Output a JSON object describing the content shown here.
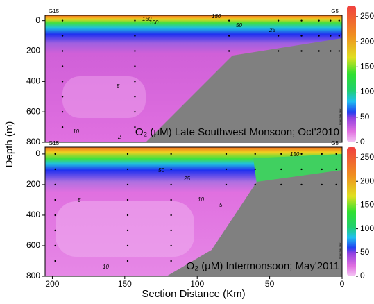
{
  "chart_data": [
    {
      "type": "contour",
      "title": "O₂ (µM) Late Southwest Monsoon; Oct'2010",
      "y_label": "Depth (m)",
      "ylim": [
        800,
        -35
      ],
      "yticks": [
        0,
        200,
        400,
        600,
        800
      ],
      "xlim": [
        205,
        0
      ],
      "station_labels": [
        "G15",
        "G5"
      ],
      "contour_labels": [
        150,
        100,
        150,
        50,
        25,
        5,
        10,
        2
      ],
      "watermark": "Ocean Data View",
      "colorbar_lim": [
        0,
        272
      ],
      "colorbar_ticks": [
        0,
        50,
        100,
        150,
        200,
        250
      ]
    },
    {
      "type": "contour",
      "title": "O₂ (µM) Intermonsoon; May'2011",
      "x_label": "Section Distance (Km)",
      "ylim": [
        800,
        -45
      ],
      "yticks": [
        0,
        200,
        400,
        600,
        800
      ],
      "xlim": [
        205,
        0
      ],
      "xticks": [
        200,
        150,
        100,
        50,
        0
      ],
      "station_labels": [
        "G15",
        "G5"
      ],
      "contour_labels": [
        50,
        25,
        150,
        5,
        10,
        5,
        10
      ],
      "watermark": "Ocean Data View",
      "colorbar_lim": [
        0,
        272
      ],
      "colorbar_ticks": [
        0,
        50,
        100,
        150,
        200,
        250
      ]
    }
  ]
}
